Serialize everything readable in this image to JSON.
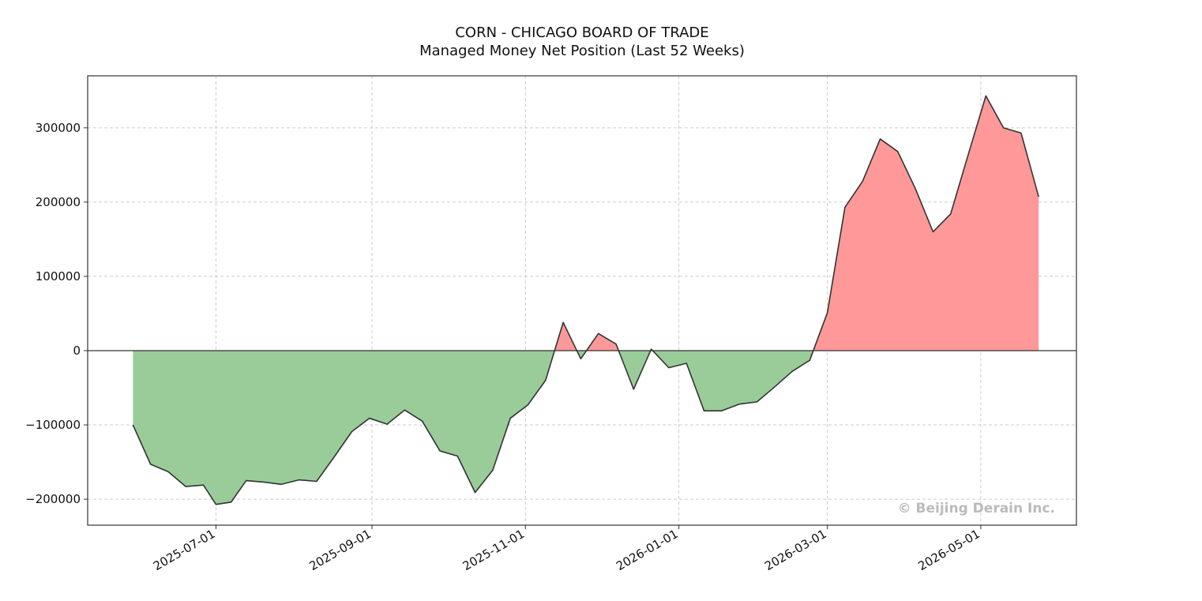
{
  "chart_data": {
    "type": "area",
    "title": "CORN - CHICAGO BOARD OF TRADE",
    "subtitle": "Managed Money Net Position (Last 52 Weeks)",
    "xlabel": "",
    "ylabel": "",
    "xlim": [
      "2025-05-11",
      "2026-06-08"
    ],
    "ylim": [
      -235000,
      370000
    ],
    "grid": true,
    "x_ticks": [
      "2025-07-01",
      "2025-09-01",
      "2025-11-01",
      "2026-01-01",
      "2026-03-01",
      "2026-05-01"
    ],
    "y_ticks": [
      -200000,
      -100000,
      0,
      100000,
      200000,
      300000
    ],
    "colors": {
      "positive": "#ff9999",
      "negative": "#99cc99",
      "line": "#333333",
      "zero_line": "#333333",
      "grid": "#cccccc"
    },
    "watermark": "© Beijing Derain Inc.",
    "series": [
      {
        "x": [
          "2025-05-29",
          "2025-06-05",
          "2025-06-12",
          "2025-06-19",
          "2025-06-26",
          "2025-07-01",
          "2025-07-07",
          "2025-07-13",
          "2025-07-20",
          "2025-07-27",
          "2025-08-03",
          "2025-08-10",
          "2025-08-17",
          "2025-08-24",
          "2025-08-31",
          "2025-09-07",
          "2025-09-14",
          "2025-09-21",
          "2025-09-28",
          "2025-10-05",
          "2025-10-12",
          "2025-10-19",
          "2025-10-26",
          "2025-11-02",
          "2025-11-09",
          "2025-11-16",
          "2025-11-23",
          "2025-11-30",
          "2025-12-07",
          "2025-12-14",
          "2025-12-21",
          "2025-12-28",
          "2026-01-04",
          "2026-01-11",
          "2026-01-18",
          "2026-01-25",
          "2026-02-01",
          "2026-02-08",
          "2026-02-15",
          "2026-02-22",
          "2026-03-01",
          "2026-03-08",
          "2026-03-15",
          "2026-03-22",
          "2026-03-29",
          "2026-04-05",
          "2026-04-12",
          "2026-04-19",
          "2026-04-26",
          "2026-05-03",
          "2026-05-10",
          "2026-05-17",
          "2026-05-24"
        ],
        "values": [
          -100000,
          -153000,
          -163000,
          -183000,
          -181000,
          -207000,
          -204000,
          -175000,
          -177000,
          -180000,
          -174000,
          -176000,
          -143000,
          -109000,
          -91000,
          -99000,
          -80000,
          -95000,
          -135000,
          -142000,
          -191000,
          -161000,
          -91000,
          -73000,
          -40000,
          38000,
          -11000,
          23000,
          9000,
          -52000,
          2000,
          -23000,
          -17000,
          -81000,
          -81000,
          -72000,
          -69000,
          -49000,
          -28000,
          -13000,
          51000,
          193000,
          228000,
          285000,
          268000,
          218000,
          160000,
          184000,
          264000,
          343000,
          300000,
          293000,
          207000
        ]
      }
    ]
  }
}
